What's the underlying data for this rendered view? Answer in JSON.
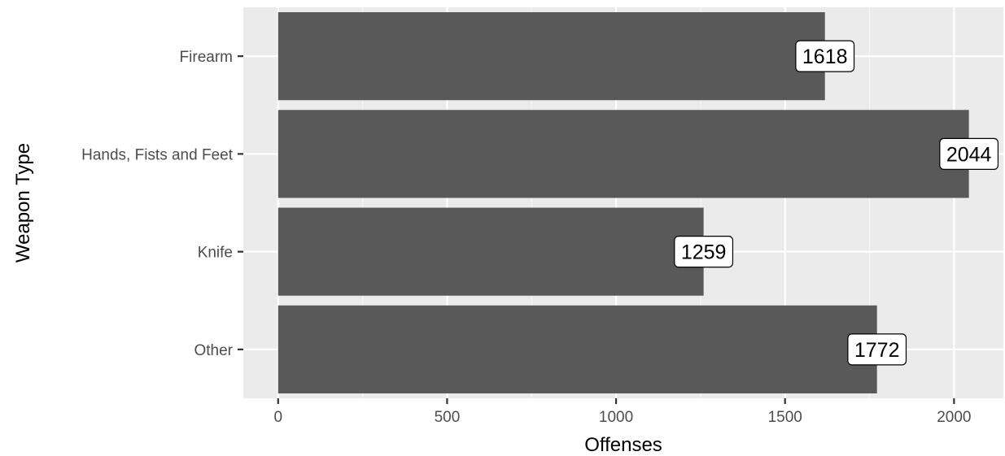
{
  "chart_data": {
    "type": "bar",
    "orientation": "horizontal",
    "categories": [
      "Firearm",
      "Hands, Fists and Feet",
      "Knife",
      "Other"
    ],
    "values": [
      1618,
      2044,
      1259,
      1772
    ],
    "title": "",
    "xlabel": "Offenses",
    "ylabel": "Weapon Type",
    "xlim": [
      -103,
      2146
    ],
    "x_ticks": [
      0,
      500,
      1000,
      1500,
      2000
    ],
    "x_tick_labels": [
      "0",
      "500",
      "1000",
      "1500",
      "2000"
    ],
    "grid": true,
    "legend": "none",
    "colors": {
      "bar": "#595959",
      "panel_background": "#ebebeb",
      "grid_major": "#ffffff",
      "grid_minor": "#f5f5f5",
      "label_fill": "#ffffff",
      "label_border": "#000000"
    }
  }
}
